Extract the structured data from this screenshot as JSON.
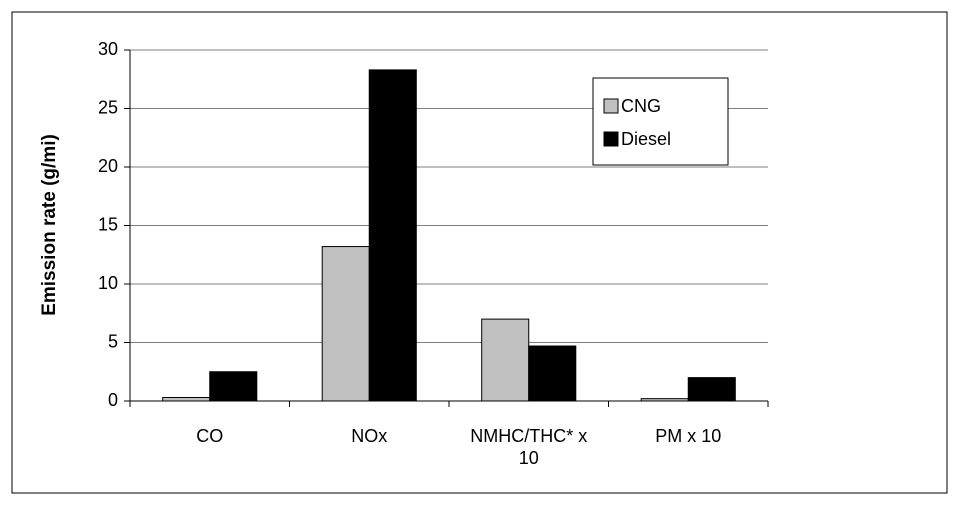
{
  "chart_data": {
    "type": "bar",
    "y_label": "Emission rate (g/mi)",
    "categories": [
      "CO",
      "NOx",
      "NMHC/THC* x 10",
      "PM x 10"
    ],
    "series": [
      {
        "name": "CNG",
        "color": "#c0c0c0",
        "values": [
          0.3,
          13.2,
          7.0,
          0.2
        ]
      },
      {
        "name": "Diesel",
        "color": "#000000",
        "values": [
          2.5,
          28.3,
          4.7,
          2.0
        ]
      }
    ],
    "ylim": [
      0,
      30
    ],
    "yticks": [
      0,
      5,
      10,
      15,
      20,
      25,
      30
    ],
    "grid": true,
    "legend": "upper right"
  }
}
